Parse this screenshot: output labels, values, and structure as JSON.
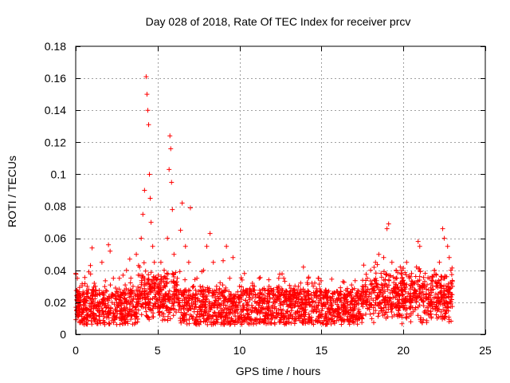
{
  "chart_data": {
    "type": "scatter",
    "title": "Day 028 of 2018, Rate Of TEC Index for receiver prcv",
    "xlabel": "GPS time / hours",
    "ylabel": "ROTI / TECUs",
    "xlim": [
      0,
      25
    ],
    "ylim": [
      0,
      0.18
    ],
    "xticks": [
      0,
      5,
      10,
      15,
      20,
      25
    ],
    "xtick_labels": [
      "0",
      "5",
      "10",
      "15",
      "20",
      "25"
    ],
    "yticks": [
      0,
      0.02,
      0.04,
      0.06,
      0.08,
      0.1,
      0.12,
      0.14,
      0.16,
      0.18
    ],
    "ytick_labels": [
      "0",
      "0.02",
      "0.04",
      "0.06",
      "0.08",
      "0.1",
      "0.12",
      "0.14",
      "0.16",
      "0.18"
    ],
    "grid": true,
    "marker": "+",
    "marker_color": "#ff0000",
    "series": [
      {
        "name": "ROTI",
        "points": [
          [
            0.0,
            0.038
          ],
          [
            0.1,
            0.035
          ],
          [
            0.2,
            0.012
          ],
          [
            0.3,
            0.02
          ],
          [
            0.5,
            0.025
          ],
          [
            0.7,
            0.03
          ],
          [
            0.9,
            0.043
          ],
          [
            1.0,
            0.054
          ],
          [
            1.2,
            0.03
          ],
          [
            1.4,
            0.018
          ],
          [
            1.6,
            0.045
          ],
          [
            1.8,
            0.022
          ],
          [
            2.0,
            0.056
          ],
          [
            2.1,
            0.052
          ],
          [
            2.3,
            0.035
          ],
          [
            2.5,
            0.02
          ],
          [
            2.7,
            0.015
          ],
          [
            2.9,
            0.025
          ],
          [
            3.1,
            0.04
          ],
          [
            3.3,
            0.047
          ],
          [
            3.5,
            0.03
          ],
          [
            3.7,
            0.05
          ],
          [
            3.9,
            0.042
          ],
          [
            4.0,
            0.06
          ],
          [
            4.1,
            0.075
          ],
          [
            4.2,
            0.09
          ],
          [
            4.3,
            0.161
          ],
          [
            4.35,
            0.15
          ],
          [
            4.4,
            0.14
          ],
          [
            4.45,
            0.131
          ],
          [
            4.5,
            0.1
          ],
          [
            4.55,
            0.085
          ],
          [
            4.6,
            0.07
          ],
          [
            4.7,
            0.055
          ],
          [
            4.8,
            0.045
          ],
          [
            4.9,
            0.035
          ],
          [
            5.0,
            0.03
          ],
          [
            5.2,
            0.045
          ],
          [
            5.4,
            0.04
          ],
          [
            5.6,
            0.06
          ],
          [
            5.7,
            0.103
          ],
          [
            5.75,
            0.124
          ],
          [
            5.8,
            0.116
          ],
          [
            5.85,
            0.095
          ],
          [
            5.9,
            0.078
          ],
          [
            6.0,
            0.05
          ],
          [
            6.2,
            0.035
          ],
          [
            6.4,
            0.065
          ],
          [
            6.5,
            0.082
          ],
          [
            6.7,
            0.055
          ],
          [
            6.9,
            0.045
          ],
          [
            7.0,
            0.079
          ],
          [
            7.2,
            0.03
          ],
          [
            7.4,
            0.035
          ],
          [
            7.6,
            0.025
          ],
          [
            7.8,
            0.04
          ],
          [
            8.0,
            0.055
          ],
          [
            8.2,
            0.063
          ],
          [
            8.4,
            0.045
          ],
          [
            8.6,
            0.03
          ],
          [
            8.8,
            0.025
          ],
          [
            9.0,
            0.046
          ],
          [
            9.2,
            0.055
          ],
          [
            9.4,
            0.035
          ],
          [
            9.6,
            0.048
          ],
          [
            9.8,
            0.02
          ],
          [
            10.0,
            0.03
          ],
          [
            10.3,
            0.038
          ],
          [
            10.6,
            0.025
          ],
          [
            10.9,
            0.03
          ],
          [
            11.2,
            0.035
          ],
          [
            11.5,
            0.02
          ],
          [
            11.8,
            0.03
          ],
          [
            12.1,
            0.025
          ],
          [
            12.4,
            0.03
          ],
          [
            12.7,
            0.035
          ],
          [
            13.0,
            0.022
          ],
          [
            13.3,
            0.028
          ],
          [
            13.6,
            0.03
          ],
          [
            13.9,
            0.042
          ],
          [
            14.2,
            0.035
          ],
          [
            14.5,
            0.03
          ],
          [
            14.8,
            0.035
          ],
          [
            15.1,
            0.025
          ],
          [
            15.4,
            0.02
          ],
          [
            15.7,
            0.015
          ],
          [
            16.0,
            0.012
          ],
          [
            16.3,
            0.015
          ],
          [
            16.6,
            0.02
          ],
          [
            16.9,
            0.028
          ],
          [
            17.2,
            0.025
          ],
          [
            17.5,
            0.03
          ],
          [
            17.8,
            0.035
          ],
          [
            18.0,
            0.04
          ],
          [
            18.3,
            0.045
          ],
          [
            18.5,
            0.05
          ],
          [
            18.8,
            0.048
          ],
          [
            19.0,
            0.066
          ],
          [
            19.1,
            0.069
          ],
          [
            19.3,
            0.045
          ],
          [
            19.6,
            0.035
          ],
          [
            19.9,
            0.04
          ],
          [
            20.2,
            0.045
          ],
          [
            20.5,
            0.038
          ],
          [
            20.8,
            0.042
          ],
          [
            20.9,
            0.058
          ],
          [
            21.0,
            0.055
          ],
          [
            21.3,
            0.03
          ],
          [
            21.6,
            0.035
          ],
          [
            21.9,
            0.04
          ],
          [
            22.2,
            0.045
          ],
          [
            22.4,
            0.066
          ],
          [
            22.5,
            0.06
          ],
          [
            22.7,
            0.055
          ],
          [
            22.8,
            0.048
          ],
          [
            22.9,
            0.04
          ],
          [
            23.0,
            0.03
          ]
        ]
      }
    ]
  }
}
